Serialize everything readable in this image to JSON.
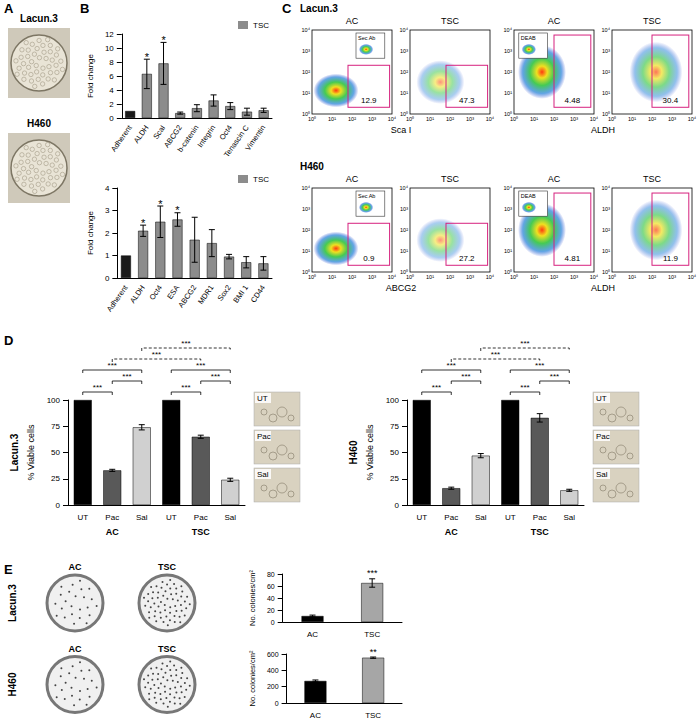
{
  "panel_labels": [
    "A",
    "B",
    "C",
    "D",
    "E"
  ],
  "panel_a": {
    "cell_lines": [
      "Lacun.3",
      "H460"
    ]
  },
  "flow_cytometry": {
    "axis_ticks": [
      "10⁰",
      "10¹",
      "10²",
      "10³",
      "10⁴"
    ],
    "rows": [
      {
        "title": "Lacun.3",
        "markers": [
          "Sca I",
          "ALDH"
        ],
        "plots": [
          {
            "group": "AC",
            "gate": 12.9,
            "inset": "Sec Ab"
          },
          {
            "group": "TSC",
            "gate": 47.3
          },
          {
            "group": "AC",
            "gate": 4.48,
            "inset": "DEAB"
          },
          {
            "group": "TSC",
            "gate": 30.4
          }
        ]
      },
      {
        "title": "H460",
        "markers": [
          "ABCG2",
          "ALDH"
        ],
        "plots": [
          {
            "group": "AC",
            "gate": 0.9,
            "inset": "Sec Ab"
          },
          {
            "group": "TSC",
            "gate": 27.2
          },
          {
            "group": "AC",
            "gate": 4.81,
            "inset": "DEAB"
          },
          {
            "group": "TSC",
            "gate": 11.9
          }
        ]
      }
    ]
  },
  "chart_data": [
    {
      "panel": "B",
      "type": "bar",
      "categories": [
        "Adherent",
        "ALDH",
        "ScaI",
        "ABCG2",
        "b-catenin",
        "Integrin",
        "Oct4",
        "Tenascin C",
        "Vimentin"
      ],
      "series": [
        {
          "name": "TSC",
          "color": "#8c8c8c",
          "colors": [
            "#1a1a1a",
            "#8c8c8c",
            "#8c8c8c",
            "#8c8c8c",
            "#8c8c8c",
            "#8c8c8c",
            "#8c8c8c",
            "#8c8c8c",
            "#8c8c8c"
          ],
          "values": [
            1,
            6.3,
            7.8,
            0.7,
            1.4,
            2.5,
            1.7,
            0.9,
            1.1
          ],
          "errors": [
            0,
            2.1,
            3.0,
            0.15,
            0.5,
            0.8,
            0.5,
            0.5,
            0.3
          ],
          "significance": [
            null,
            "*",
            "*",
            null,
            null,
            null,
            null,
            null,
            null
          ]
        }
      ],
      "ylabel": "Fold change",
      "ylim": [
        0,
        12
      ],
      "yticks": [
        0,
        2,
        4,
        6,
        8,
        10,
        12
      ],
      "legend": "upper right",
      "grid": false
    },
    {
      "panel": "B",
      "type": "bar",
      "categories": [
        "Adherent",
        "ALDH",
        "Oct4",
        "ESA",
        "ABCG2",
        "MDR1",
        "Sox2",
        "BMI 1",
        "CD44"
      ],
      "series": [
        {
          "name": "TSC",
          "color": "#8c8c8c",
          "colors": [
            "#1a1a1a",
            "#8c8c8c",
            "#8c8c8c",
            "#8c8c8c",
            "#8c8c8c",
            "#8c8c8c",
            "#8c8c8c",
            "#8c8c8c",
            "#8c8c8c"
          ],
          "values": [
            1,
            2.1,
            2.5,
            2.6,
            1.7,
            1.55,
            0.95,
            0.7,
            0.65
          ],
          "errors": [
            0,
            0.25,
            0.7,
            0.3,
            1.0,
            0.6,
            0.1,
            0.25,
            0.3
          ],
          "significance": [
            null,
            "*",
            "*",
            "*",
            null,
            null,
            null,
            null,
            null
          ]
        }
      ],
      "ylabel": "Fold change",
      "ylim": [
        0,
        4
      ],
      "yticks": [
        0,
        1,
        2,
        3,
        4
      ],
      "legend": "upper right",
      "grid": false
    },
    {
      "panel": "D",
      "type": "bar",
      "title": "Lacun.3",
      "ylabel": "% Viable cells",
      "categories": [
        "UT",
        "Pac",
        "Sal",
        "UT",
        "Pac",
        "Sal"
      ],
      "groups": [
        "AC",
        "TSC"
      ],
      "values": [
        100,
        33,
        74,
        100,
        65,
        24
      ],
      "errors": [
        0,
        1,
        2.5,
        0,
        1.5,
        1.5
      ],
      "colors": [
        "#000000",
        "#595959",
        "#d0d0d0",
        "#000000",
        "#595959",
        "#d0d0d0"
      ],
      "ylim": [
        0,
        100
      ],
      "yticks": [
        0,
        25,
        50,
        75,
        100
      ],
      "grid": false,
      "brackets": [
        {
          "from": 0,
          "to": 1,
          "label": "***",
          "line_style": "solid"
        },
        {
          "from": 1,
          "to": 2,
          "label": "***",
          "line_style": "solid"
        },
        {
          "from": 0,
          "to": 2,
          "label": "***",
          "line_style": "solid"
        },
        {
          "from": 3,
          "to": 4,
          "label": "***",
          "line_style": "solid"
        },
        {
          "from": 4,
          "to": 5,
          "label": "***",
          "line_style": "solid"
        },
        {
          "from": 3,
          "to": 5,
          "label": "***",
          "line_style": "solid"
        },
        {
          "from": 1,
          "to": 4,
          "label": "***",
          "line_style": "dashed"
        },
        {
          "from": 2,
          "to": 5,
          "label": "***",
          "line_style": "dashed"
        }
      ],
      "images": [
        "UT",
        "Pac",
        "Sal"
      ]
    },
    {
      "panel": "D",
      "type": "bar",
      "title": "H460",
      "ylabel": "% Viable cells",
      "categories": [
        "UT",
        "Pac",
        "Sal",
        "UT",
        "Pac",
        "Sal"
      ],
      "groups": [
        "AC",
        "TSC"
      ],
      "values": [
        100,
        16,
        47,
        100,
        83,
        14
      ],
      "errors": [
        0,
        1,
        2,
        0,
        4,
        1
      ],
      "colors": [
        "#000000",
        "#595959",
        "#d0d0d0",
        "#000000",
        "#595959",
        "#d0d0d0"
      ],
      "ylim": [
        0,
        100
      ],
      "yticks": [
        0,
        25,
        50,
        75,
        100
      ],
      "grid": false,
      "brackets": [
        {
          "from": 0,
          "to": 1,
          "label": "***",
          "line_style": "solid"
        },
        {
          "from": 1,
          "to": 2,
          "label": "***",
          "line_style": "solid"
        },
        {
          "from": 0,
          "to": 2,
          "label": "***",
          "line_style": "solid"
        },
        {
          "from": 3,
          "to": 4,
          "label": "***",
          "line_style": "solid"
        },
        {
          "from": 4,
          "to": 5,
          "label": "***",
          "line_style": "solid"
        },
        {
          "from": 3,
          "to": 5,
          "label": "***",
          "line_style": "solid"
        },
        {
          "from": 1,
          "to": 4,
          "label": "***",
          "line_style": "dashed"
        },
        {
          "from": 2,
          "to": 5,
          "label": "***",
          "line_style": "dashed"
        }
      ],
      "images": [
        "UT",
        "Pac",
        "Sal"
      ]
    },
    {
      "panel": "E",
      "type": "bar",
      "title": "Lacun.3",
      "categories": [
        "AC",
        "TSC"
      ],
      "values": [
        10,
        65
      ],
      "errors": [
        1.5,
        7
      ],
      "colors": [
        "#000000",
        "#a6a6a6"
      ],
      "significance": [
        null,
        "***"
      ],
      "ylabel": "No. colonies/cm²",
      "ylim": [
        0,
        80
      ],
      "yticks": [
        0,
        20,
        40,
        60,
        80
      ],
      "grid": false,
      "images": [
        "AC",
        "TSC"
      ]
    },
    {
      "panel": "E",
      "type": "bar",
      "title": "H460",
      "categories": [
        "AC",
        "TSC"
      ],
      "values": [
        270,
        555
      ],
      "errors": [
        12,
        8
      ],
      "colors": [
        "#000000",
        "#a6a6a6"
      ],
      "significance": [
        null,
        "**"
      ],
      "ylabel": "No. colonies/cm²",
      "ylim": [
        0,
        600
      ],
      "yticks": [
        0,
        200,
        400,
        600
      ],
      "grid": false,
      "images": [
        "AC",
        "TSC"
      ]
    }
  ]
}
